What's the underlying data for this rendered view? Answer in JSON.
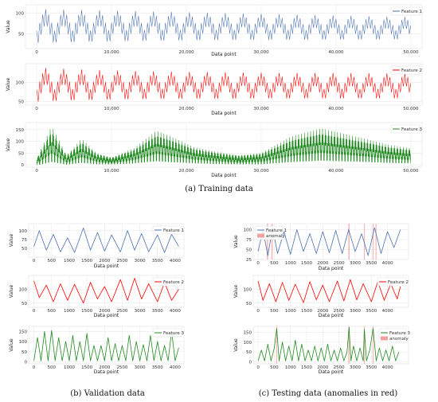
{
  "captions": {
    "training": "(a) Training data",
    "validation": "(b) Validation data",
    "testing": "(c) Testing data (anomalies in red)"
  },
  "colors": {
    "feature1": "#4c72b0",
    "feature2": "#ff0000",
    "feature3": "#228b22",
    "anomaly": "#f4a0a0"
  },
  "chart_data": [
    {
      "id": "train-f1",
      "type": "line",
      "group": "training",
      "xlabel": "Data point",
      "ylabel": "Value",
      "xlim": [
        -1500,
        51500
      ],
      "ylim": [
        15,
        120
      ],
      "xticks": [
        0,
        10000,
        20000,
        30000,
        40000,
        50000
      ],
      "xtick_labels": [
        "0",
        "10,000",
        "20,000",
        "30,000",
        "40,000",
        "50,000"
      ],
      "yticks": [
        50,
        100
      ],
      "ytick_labels": [
        "50",
        "100"
      ],
      "legend": [
        "Feature 1"
      ],
      "legend_position": "top-right",
      "series": [
        {
          "name": "Feature 1",
          "color": "#4c72b0",
          "envelope": {
            "x": [
              0,
              5000,
              10000,
              15000,
              20000,
              25000,
              30000,
              35000,
              40000,
              45000,
              50000
            ],
            "low": [
              25,
              28,
              30,
              32,
              33,
              34,
              35,
              35,
              36,
              36,
              37
            ],
            "high": [
              110,
              108,
              106,
              104,
              102,
              100,
              98,
              96,
              94,
              92,
              90
            ]
          },
          "envelope_period": 2400
        }
      ]
    },
    {
      "id": "train-f2",
      "type": "line",
      "group": "training",
      "xlabel": "Data point",
      "ylabel": "Value",
      "xlim": [
        -1500,
        51500
      ],
      "ylim": [
        40,
        150
      ],
      "xticks": [
        0,
        10000,
        20000,
        30000,
        40000,
        50000
      ],
      "xtick_labels": [
        "0",
        "10,000",
        "20,000",
        "30,000",
        "40,000",
        "50,000"
      ],
      "yticks": [
        50,
        100
      ],
      "ytick_labels": [
        "50",
        "100"
      ],
      "legend": [
        "Feature 2"
      ],
      "legend_position": "top-right",
      "series": [
        {
          "name": "Feature 2",
          "color": "#ff0000",
          "envelope": {
            "x": [
              0,
              5000,
              10000,
              15000,
              20000,
              25000,
              30000,
              35000,
              40000,
              45000,
              50000
            ],
            "low": [
              45,
              50,
              52,
              54,
              55,
              55,
              56,
              56,
              56,
              56,
              56
            ],
            "high": [
              140,
              135,
              132,
              130,
              128,
              127,
              126,
              125,
              125,
              124,
              124
            ]
          },
          "envelope_period": 2400
        }
      ]
    },
    {
      "id": "train-f3",
      "type": "line",
      "group": "training",
      "xlabel": "Data point",
      "ylabel": "Value",
      "xlim": [
        -1500,
        51500
      ],
      "ylim": [
        -10,
        180
      ],
      "xticks": [
        0,
        10000,
        20000,
        30000,
        40000,
        50000
      ],
      "xtick_labels": [
        "0",
        "10,000",
        "20,000",
        "30,000",
        "40,000",
        "50,000"
      ],
      "yticks": [
        0,
        50,
        100,
        150
      ],
      "ytick_labels": [
        "0",
        "50",
        "100",
        "150"
      ],
      "legend": [
        "Feature 3"
      ],
      "legend_position": "top-right",
      "series": [
        {
          "name": "Feature 3",
          "color": "#228b22",
          "envelope": {
            "x": [
              0,
              2000,
              4000,
              6000,
              8000,
              10000,
              13000,
              16000,
              18000,
              21000,
              24000,
              27000,
              30000,
              34000,
              38000,
              40000,
              44000,
              47000,
              50000
            ],
            "low": [
              0,
              3,
              2,
              4,
              3,
              3,
              5,
              8,
              6,
              5,
              4,
              3,
              3,
              6,
              10,
              9,
              8,
              6,
              5
            ],
            "high": [
              25,
              165,
              40,
              110,
              50,
              30,
              70,
              145,
              120,
              75,
              55,
              40,
              50,
              120,
              155,
              140,
              110,
              85,
              70
            ]
          },
          "envelope_period": 400
        }
      ]
    },
    {
      "id": "val-f1",
      "type": "line",
      "group": "validation",
      "xlabel": "Data point",
      "ylabel": "Value",
      "xlim": [
        -150,
        4250
      ],
      "ylim": [
        25,
        120
      ],
      "xticks": [
        0,
        500,
        1000,
        1500,
        2000,
        2500,
        3000,
        3500,
        4000
      ],
      "xtick_labels": [
        "0",
        "500",
        "1000",
        "1500",
        "2000",
        "2500",
        "3000",
        "3500",
        "4000"
      ],
      "yticks": [
        50,
        75,
        100
      ],
      "ytick_labels": [
        "50",
        "75",
        "100"
      ],
      "legend": [
        "Feature 1"
      ],
      "legend_position": "top-right",
      "series": [
        {
          "name": "Feature 1",
          "color": "#4c72b0",
          "x": [
            0,
            150,
            350,
            550,
            750,
            950,
            1150,
            1400,
            1600,
            1800,
            2000,
            2200,
            2450,
            2650,
            2850,
            3050,
            3250,
            3500,
            3700,
            3900,
            4100
          ],
          "y": [
            55,
            100,
            45,
            90,
            40,
            80,
            38,
            108,
            45,
            95,
            42,
            88,
            40,
            100,
            45,
            92,
            40,
            88,
            38,
            90,
            55
          ]
        }
      ]
    },
    {
      "id": "val-f2",
      "type": "line",
      "group": "validation",
      "xlabel": "Data point",
      "ylabel": "Value",
      "xlim": [
        -150,
        4250
      ],
      "ylim": [
        35,
        150
      ],
      "xticks": [
        0,
        500,
        1000,
        1500,
        2000,
        2500,
        3000,
        3500,
        4000
      ],
      "xtick_labels": [
        "0",
        "500",
        "1000",
        "1500",
        "2000",
        "2500",
        "3000",
        "3500",
        "4000"
      ],
      "yticks": [
        50,
        100
      ],
      "ytick_labels": [
        "50",
        "100"
      ],
      "legend": [
        "Feature 2"
      ],
      "legend_position": "top-right",
      "series": [
        {
          "name": "Feature 2",
          "color": "#ff0000",
          "x": [
            0,
            150,
            350,
            550,
            750,
            950,
            1150,
            1400,
            1600,
            1800,
            2000,
            2200,
            2450,
            2650,
            2850,
            3050,
            3250,
            3500,
            3700,
            3900,
            4100
          ],
          "y": [
            130,
            70,
            115,
            55,
            120,
            60,
            118,
            50,
            125,
            65,
            110,
            55,
            135,
            60,
            140,
            65,
            120,
            55,
            125,
            60,
            100
          ]
        }
      ]
    },
    {
      "id": "val-f3",
      "type": "line",
      "group": "validation",
      "xlabel": "Data point",
      "ylabel": "Value",
      "xlim": [
        -150,
        4250
      ],
      "ylim": [
        -10,
        175
      ],
      "xticks": [
        0,
        500,
        1000,
        1500,
        2000,
        2500,
        3000,
        3500,
        4000
      ],
      "xtick_labels": [
        "0",
        "500",
        "1000",
        "1500",
        "2000",
        "2500",
        "3000",
        "3500",
        "4000"
      ],
      "yticks": [
        0,
        50,
        100,
        150
      ],
      "ytick_labels": [
        "0",
        "50",
        "100",
        "150"
      ],
      "legend": [
        "Feature 3"
      ],
      "legend_position": "top-right",
      "series": [
        {
          "name": "Feature 3",
          "color": "#228b22",
          "x": [
            0,
            100,
            200,
            300,
            400,
            500,
            600,
            700,
            800,
            900,
            1000,
            1100,
            1200,
            1300,
            1400,
            1500,
            1600,
            1700,
            1800,
            1900,
            2000,
            2100,
            2200,
            2300,
            2400,
            2500,
            2600,
            2700,
            2800,
            2900,
            3000,
            3100,
            3200,
            3300,
            3400,
            3500,
            3600,
            3700,
            3800,
            3900,
            4000,
            4100
          ],
          "y": [
            5,
            120,
            5,
            150,
            5,
            155,
            5,
            120,
            5,
            100,
            5,
            130,
            5,
            100,
            5,
            140,
            5,
            80,
            5,
            80,
            5,
            120,
            5,
            90,
            5,
            80,
            5,
            130,
            5,
            100,
            5,
            85,
            5,
            130,
            5,
            100,
            5,
            80,
            5,
            150,
            5,
            70
          ]
        }
      ]
    },
    {
      "id": "test-f1",
      "type": "line",
      "group": "testing",
      "xlabel": "Data point",
      "ylabel": "Value",
      "xlim": [
        -150,
        4650
      ],
      "ylim": [
        25,
        115
      ],
      "xticks": [
        0,
        500,
        1000,
        1500,
        2000,
        2500,
        3000,
        3500,
        4000
      ],
      "xtick_labels": [
        "0",
        "500",
        "1000",
        "1500",
        "2000",
        "2500",
        "3000",
        "3500",
        "4000"
      ],
      "yticks": [
        25,
        50,
        75,
        100
      ],
      "ytick_labels": [
        "25",
        "50",
        "75",
        "100"
      ],
      "legend": [
        "Feature 1",
        "anomaly"
      ],
      "legend_position": "top-left",
      "anomaly_ranges": [
        [
          270,
          310
        ],
        [
          410,
          450
        ],
        [
          2790,
          2830
        ],
        [
          3270,
          3300
        ],
        [
          3540,
          3570
        ],
        [
          3630,
          3660
        ]
      ],
      "series": [
        {
          "name": "Feature 1",
          "color": "#4c72b0",
          "x": [
            0,
            150,
            300,
            450,
            600,
            800,
            1000,
            1200,
            1400,
            1600,
            1800,
            2000,
            2200,
            2400,
            2600,
            2800,
            3000,
            3200,
            3400,
            3600,
            3800,
            4000,
            4200,
            4400
          ],
          "y": [
            45,
            100,
            35,
            105,
            40,
            95,
            38,
            100,
            45,
            90,
            40,
            95,
            42,
            98,
            40,
            100,
            45,
            90,
            35,
            105,
            40,
            95,
            55,
            100
          ]
        }
      ]
    },
    {
      "id": "test-f2",
      "type": "line",
      "group": "testing",
      "xlabel": "Data point",
      "ylabel": "Value",
      "xlim": [
        -150,
        4650
      ],
      "ylim": [
        35,
        150
      ],
      "xticks": [
        0,
        500,
        1000,
        1500,
        2000,
        2500,
        3000,
        3500,
        4000
      ],
      "xtick_labels": [
        "0",
        "500",
        "1000",
        "1500",
        "2000",
        "2500",
        "3000",
        "3500",
        "4000"
      ],
      "yticks": [
        50,
        100
      ],
      "ytick_labels": [
        "50",
        "100"
      ],
      "legend": [
        "Feature 2"
      ],
      "legend_position": "top-right",
      "series": [
        {
          "name": "Feature 2",
          "color": "#ff0000",
          "x": [
            0,
            150,
            350,
            550,
            750,
            950,
            1150,
            1400,
            1600,
            1800,
            2000,
            2200,
            2450,
            2650,
            2850,
            3050,
            3250,
            3500,
            3700,
            3900,
            4100,
            4300,
            4400
          ],
          "y": [
            130,
            60,
            120,
            55,
            125,
            60,
            118,
            52,
            128,
            62,
            115,
            55,
            130,
            58,
            135,
            62,
            120,
            55,
            128,
            60,
            120,
            65,
            110
          ]
        }
      ]
    },
    {
      "id": "test-f3",
      "type": "line",
      "group": "testing",
      "xlabel": "Data point",
      "ylabel": "Value",
      "xlim": [
        -150,
        4650
      ],
      "ylim": [
        -10,
        180
      ],
      "xticks": [
        0,
        500,
        1000,
        1500,
        2000,
        2500,
        3000,
        3500,
        4000
      ],
      "xtick_labels": [
        "0",
        "500",
        "1000",
        "1500",
        "2000",
        "2500",
        "3000",
        "3500",
        "4000"
      ],
      "yticks": [
        0,
        50,
        100,
        150
      ],
      "ytick_labels": [
        "0",
        "50",
        "100",
        "150"
      ],
      "legend": [
        "Feature 3",
        "anomaly"
      ],
      "legend_position": "top-right",
      "anomaly_ranges": [
        [
          560,
          590
        ],
        [
          2790,
          2830
        ],
        [
          3270,
          3300
        ],
        [
          3540,
          3570
        ]
      ],
      "series": [
        {
          "name": "Feature 3",
          "color": "#228b22",
          "x": [
            0,
            100,
            200,
            300,
            400,
            500,
            575,
            650,
            750,
            850,
            950,
            1050,
            1150,
            1250,
            1350,
            1450,
            1550,
            1650,
            1750,
            1850,
            1950,
            2050,
            2150,
            2250,
            2350,
            2450,
            2550,
            2650,
            2750,
            2810,
            2870,
            2950,
            3050,
            3150,
            3250,
            3285,
            3350,
            3450,
            3555,
            3650,
            3750,
            3850,
            3950,
            4050,
            4150,
            4250,
            4350
          ],
          "y": [
            5,
            60,
            5,
            90,
            5,
            70,
            170,
            5,
            100,
            5,
            80,
            5,
            110,
            5,
            90,
            5,
            60,
            5,
            80,
            5,
            70,
            5,
            90,
            5,
            60,
            5,
            70,
            5,
            50,
            175,
            5,
            80,
            5,
            70,
            5,
            165,
            5,
            60,
            170,
            5,
            70,
            5,
            60,
            5,
            80,
            5,
            50
          ]
        }
      ]
    }
  ]
}
